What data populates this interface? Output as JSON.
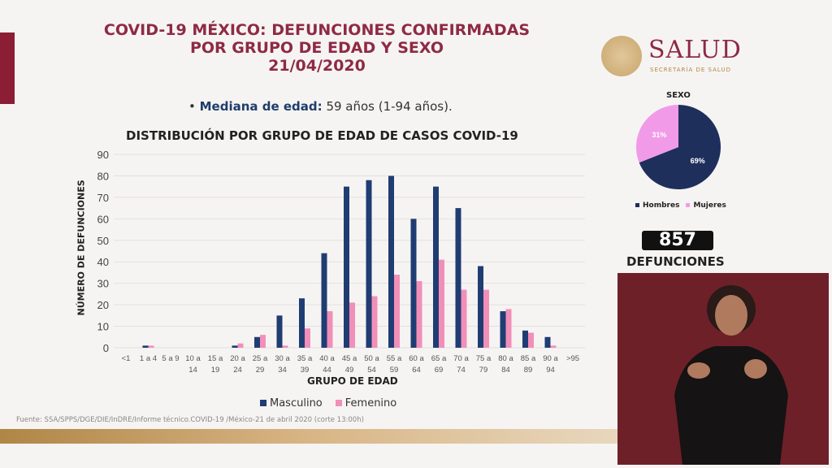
{
  "header": {
    "title_line1": "COVID-19 MÉXICO: DEFUNCIONES CONFIRMADAS",
    "title_line2": "POR GRUPO DE EDAD Y SEXO",
    "title_line3": "21/04/2020"
  },
  "median": {
    "label": "Mediana de edad:",
    "value": "59 años (1-94 años)."
  },
  "brand": {
    "name": "SALUD",
    "subtitle": "SECRETARÍA DE SALUD"
  },
  "footer": {
    "source": "Fuente: SSA/SPPS/DGE/DIE/InDRE/Informe técnico.COVID-19 /México-21 de abril 2020 (corte 13:00h)"
  },
  "summary": {
    "count": "857",
    "label": "DEFUNCIONES"
  },
  "chart_data": [
    {
      "type": "bar",
      "title": "DISTRIBUCIÓN POR GRUPO DE EDAD DE CASOS COVID-19",
      "xlabel": "GRUPO DE EDAD",
      "ylabel": "NÚMERO DE DEFUNCIONES",
      "ylim": [
        0,
        90
      ],
      "yticks": [
        0,
        10,
        20,
        30,
        40,
        50,
        60,
        70,
        80,
        90
      ],
      "grid": true,
      "legend_position": "bottom",
      "categories": [
        "<1",
        "1 a 4",
        "5 a 9",
        "10 a 14",
        "15 a 19",
        "20 a 24",
        "25 a 29",
        "30 a 34",
        "35 a 39",
        "40 a 44",
        "45 a 49",
        "50 a 54",
        "55 a 59",
        "60 a 64",
        "65 a 69",
        "70 a 74",
        "75 a 79",
        "80 a 84",
        "85 a 89",
        "90 a 94",
        ">95"
      ],
      "series": [
        {
          "name": "Masculino",
          "color": "#1f3d73",
          "values": [
            0,
            1,
            0,
            0,
            0,
            1,
            5,
            15,
            23,
            44,
            75,
            78,
            80,
            60,
            75,
            65,
            38,
            17,
            8,
            5,
            0
          ]
        },
        {
          "name": "Femenino",
          "color": "#f28fb8",
          "values": [
            0,
            1,
            0,
            0,
            0,
            2,
            6,
            1,
            9,
            17,
            21,
            24,
            34,
            31,
            41,
            27,
            27,
            18,
            7,
            1,
            0
          ]
        }
      ]
    },
    {
      "type": "pie",
      "title": "SEXO",
      "slices": [
        {
          "label": "Hombres",
          "value": 69,
          "text": "69%",
          "color": "#1f2f5c"
        },
        {
          "label": "Mujeres",
          "value": 31,
          "text": "31%",
          "color": "#f19ae8"
        }
      ]
    }
  ]
}
